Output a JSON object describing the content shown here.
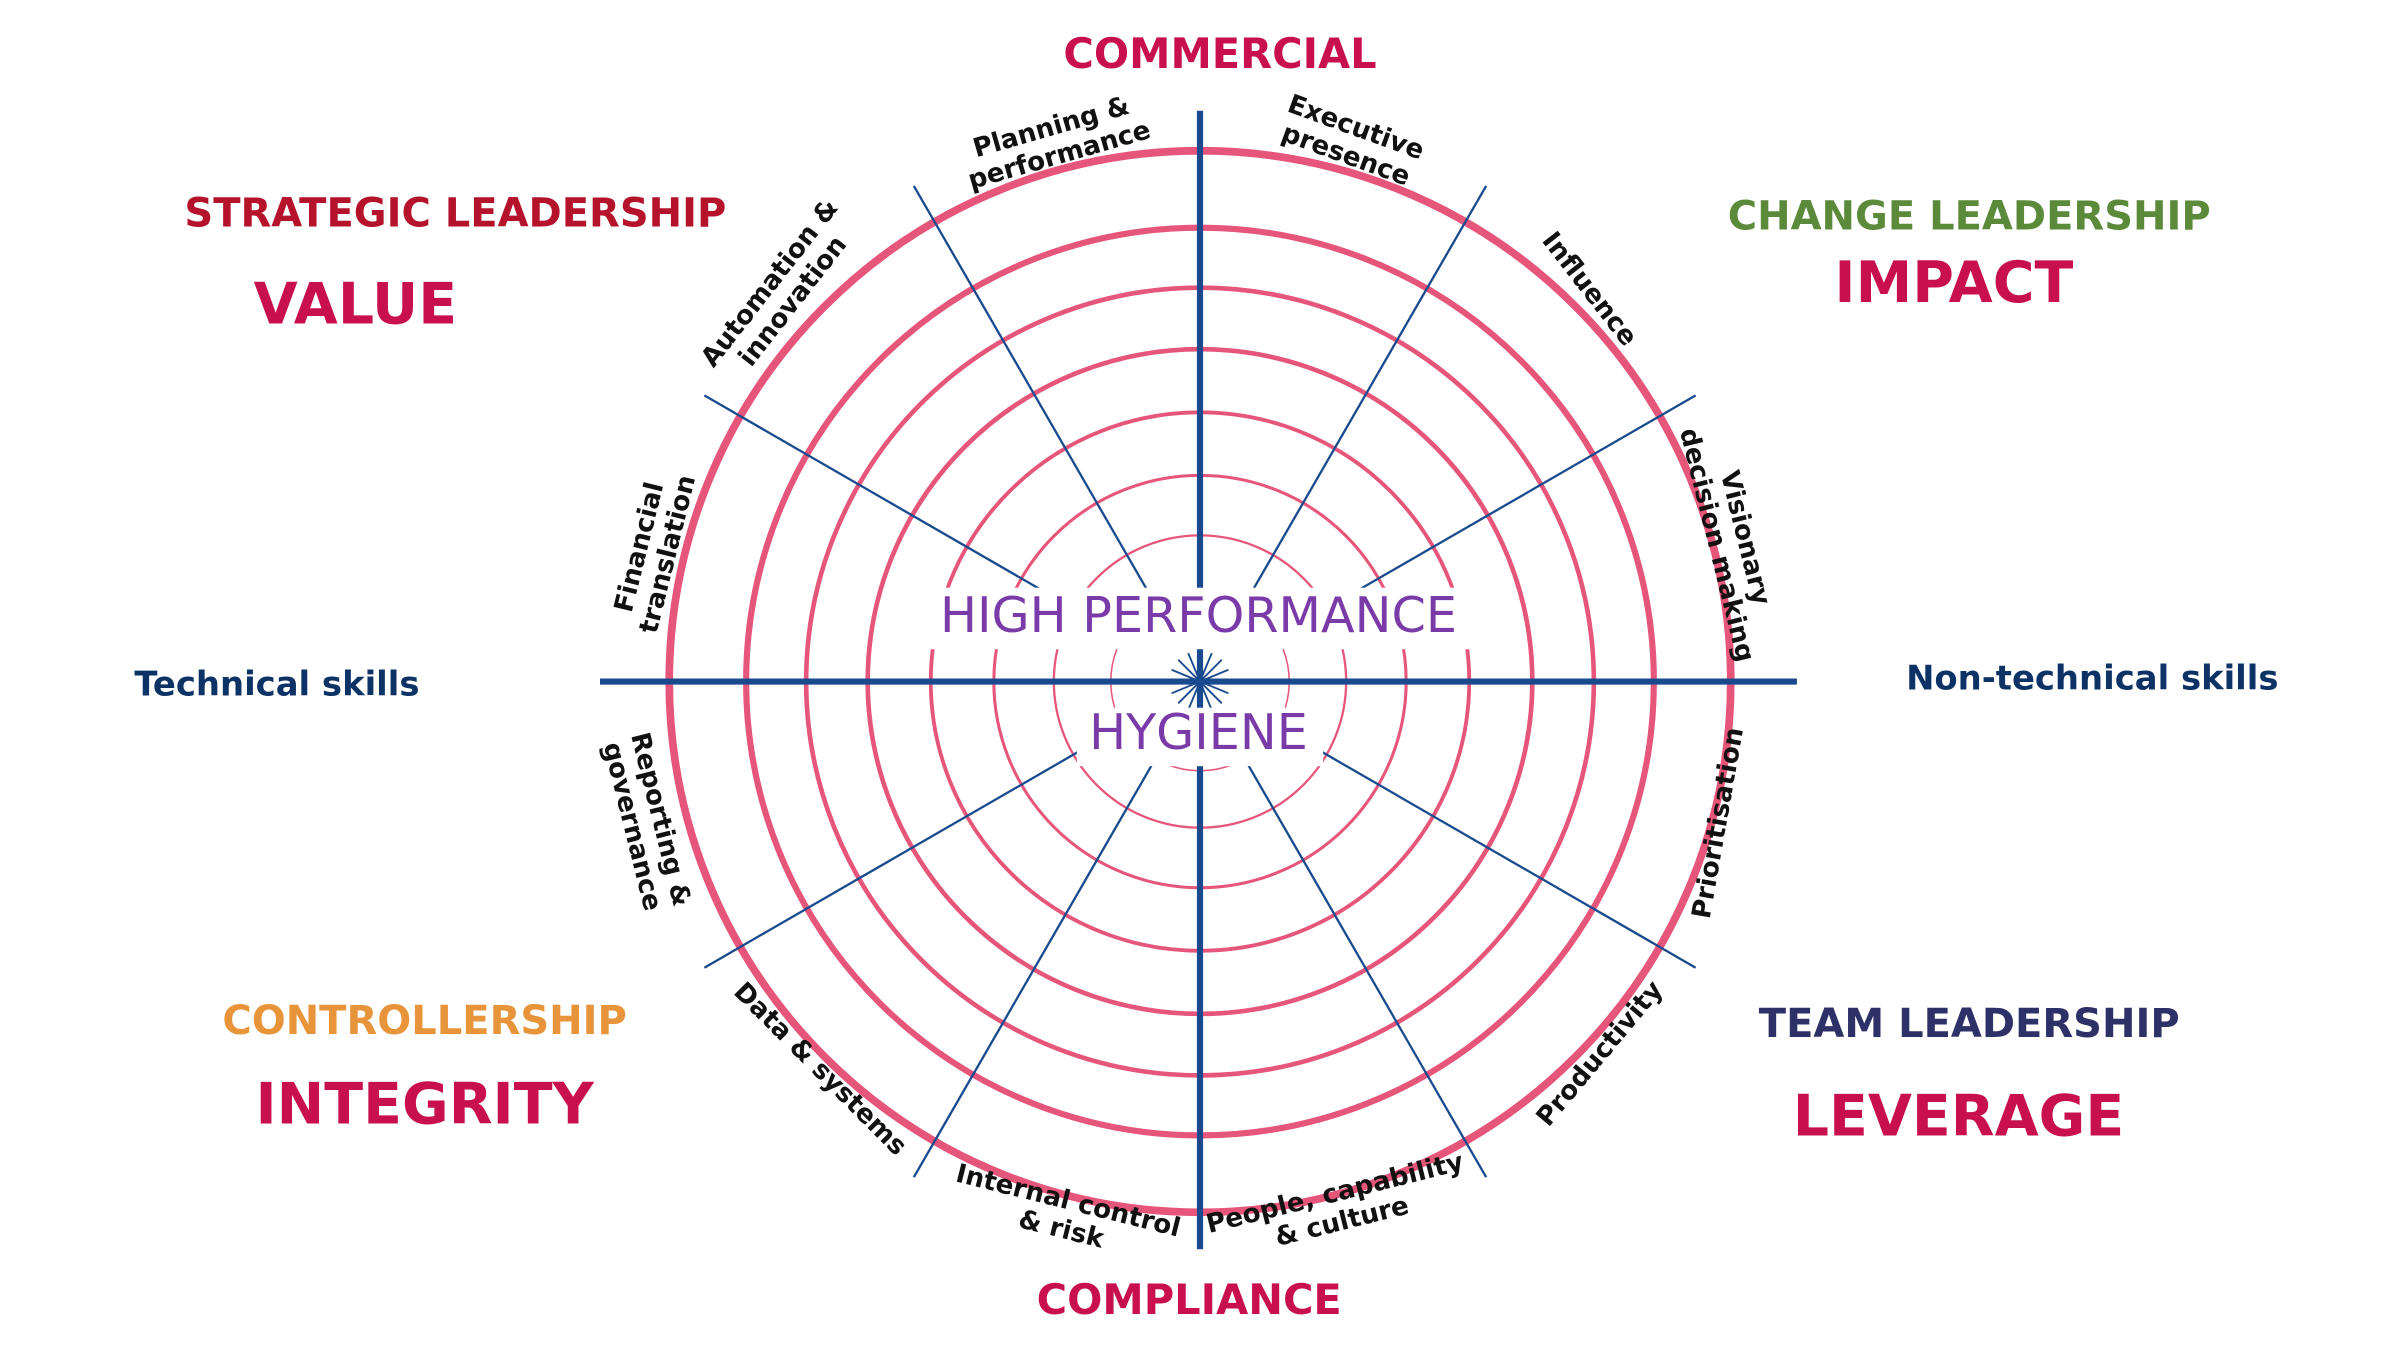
{
  "axes": {
    "top": "COMMERCIAL",
    "bottom": "COMPLIANCE",
    "left": "Technical skills",
    "right": "Non-technical skills"
  },
  "quadrants": [
    {
      "title": "STRATEGIC LEADERSHIP",
      "subtitle": "VALUE"
    },
    {
      "title": "CHANGE LEADERSHIP",
      "subtitle": "IMPACT"
    },
    {
      "title": "CONTROLLERSHIP",
      "subtitle": "INTEGRITY"
    },
    {
      "title": "TEAM LEADERSHIP",
      "subtitle": "LEVERAGE"
    }
  ],
  "center": {
    "upper": "HIGH PERFORMANCE",
    "lower": "HYGIENE"
  },
  "segments": [
    {
      "lines": [
        "Executive",
        "presence"
      ]
    },
    {
      "lines": [
        "Influence"
      ]
    },
    {
      "lines": [
        "Visionary",
        "decision making"
      ]
    },
    {
      "lines": [
        "Prioritisation"
      ]
    },
    {
      "lines": [
        "Productivity"
      ]
    },
    {
      "lines": [
        "People, capability",
        "& culture"
      ]
    },
    {
      "lines": [
        "Internal control",
        "& risk"
      ]
    },
    {
      "lines": [
        "Data & systems"
      ]
    },
    {
      "lines": [
        "Reporting &",
        "governance"
      ]
    },
    {
      "lines": [
        "Financial",
        "translation"
      ]
    },
    {
      "lines": [
        "Automation &",
        "innovation"
      ]
    },
    {
      "lines": [
        "Planning &",
        "performance"
      ]
    }
  ]
}
